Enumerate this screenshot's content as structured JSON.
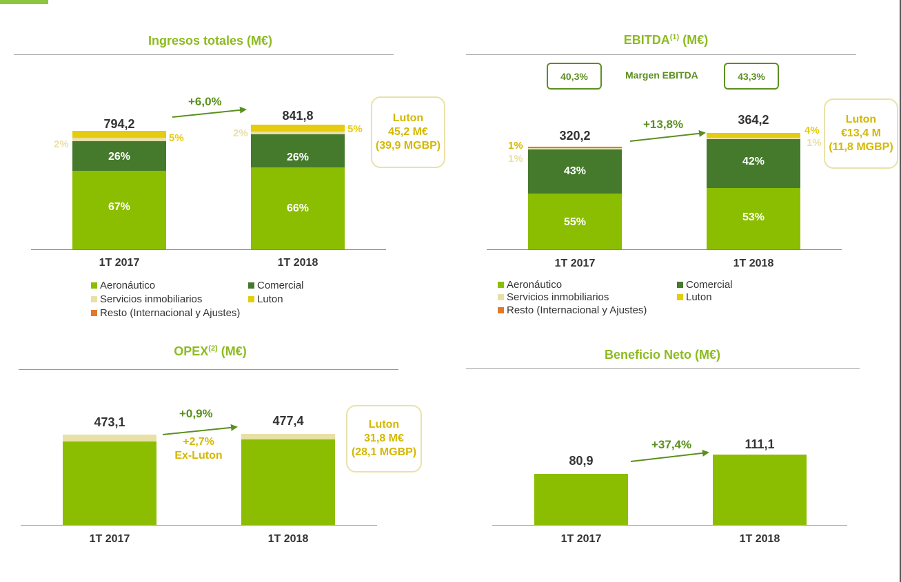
{
  "colors": {
    "aeronautico": "#8bbe00",
    "comercial": "#457a2c",
    "servicios": "#e8e0a6",
    "luton": "#e5cc0e",
    "resto": "#e07a2a",
    "title": "#8cbb1f",
    "growth": "#5a8f1e",
    "luton_text": "#d4b800"
  },
  "legend": {
    "aeronautico": "Aeronáutico",
    "comercial": "Comercial",
    "servicios": "Servicios inmobiliarios",
    "luton": "Luton",
    "resto": "Resto (Internacional y Ajustes)"
  },
  "chart_data": [
    {
      "type": "bar",
      "title": "Ingresos totales (M€)",
      "categories": [
        "1T 2017",
        "1T 2018"
      ],
      "totals": [
        "794,2",
        "841,8"
      ],
      "growth": "+6,0%",
      "series": [
        {
          "name": "Aeronáutico",
          "values": [
            67,
            66
          ],
          "labels": [
            "67%",
            "66%"
          ]
        },
        {
          "name": "Comercial",
          "values": [
            26,
            26
          ],
          "labels": [
            "26%",
            "26%"
          ]
        },
        {
          "name": "Servicios inmobiliarios",
          "values": [
            2,
            2
          ],
          "labels": [
            "2%",
            "2%"
          ]
        },
        {
          "name": "Luton",
          "values": [
            5,
            5
          ],
          "labels": [
            "5%",
            "5%"
          ]
        }
      ],
      "luton_box": [
        "Luton",
        "45,2 M€",
        "(39,9 MGBP)"
      ]
    },
    {
      "type": "bar",
      "title": "EBITDA",
      "title_sup": "(1)",
      "title_suffix": " (M€)",
      "categories": [
        "1T 2017",
        "1T 2018"
      ],
      "totals": [
        "320,2",
        "364,2"
      ],
      "growth": "+13,8%",
      "margin_label": "Margen EBITDA",
      "margins": [
        "40,3%",
        "43,3%"
      ],
      "series": [
        {
          "name": "Aeronáutico",
          "values": [
            55,
            53
          ],
          "labels": [
            "55%",
            "53%"
          ]
        },
        {
          "name": "Comercial",
          "values": [
            43,
            42
          ],
          "labels": [
            "43%",
            "42%"
          ]
        },
        {
          "name": "Servicios inmobiliarios",
          "values": [
            1,
            1
          ],
          "labels": [
            "1%",
            "1%"
          ]
        },
        {
          "name": "Luton",
          "values": [
            0,
            4
          ],
          "labels": [
            "",
            "4%"
          ]
        },
        {
          "name": "Resto (Internacional y Ajustes)",
          "values": [
            1,
            0
          ],
          "labels": [
            "1%",
            ""
          ]
        }
      ],
      "luton_box": [
        "Luton",
        "€13,4 M",
        "(11,8 MGBP)"
      ]
    },
    {
      "type": "bar",
      "title": "OPEX",
      "title_sup": "(2)",
      "title_suffix": " (M€)",
      "categories": [
        "1T 2017",
        "1T 2018"
      ],
      "totals": [
        "473,1",
        "477,4"
      ],
      "growth": "+0,9%",
      "sub_growth": [
        "+2,7%",
        "Ex-Luton"
      ],
      "values": [
        473.1,
        477.4
      ],
      "luton_box": [
        "Luton",
        "31,8 M€",
        "(28,1 MGBP)"
      ]
    },
    {
      "type": "bar",
      "title": "Beneficio Neto (M€)",
      "categories": [
        "1T 2017",
        "1T 2018"
      ],
      "totals": [
        "80,9",
        "111,1"
      ],
      "growth": "+37,4%",
      "values": [
        80.9,
        111.1
      ]
    }
  ]
}
